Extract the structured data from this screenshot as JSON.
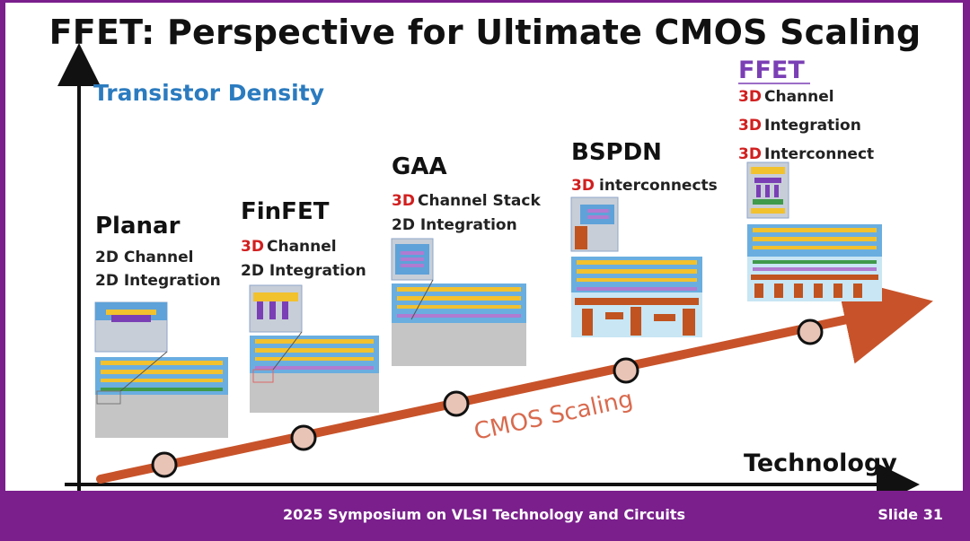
{
  "slide": {
    "title": "FFET: Perspective for Ultimate CMOS Scaling",
    "y_axis_label": "Transistor Density",
    "x_axis_label": "Technology",
    "trend_label": "CMOS Scaling",
    "footer_text": "2025 Symposium on VLSI Technology and Circuits",
    "slide_number": "Slide 31"
  },
  "stages": [
    {
      "name": "Planar",
      "line1_prefix": "",
      "line1": "2D Channel",
      "line2_prefix": "",
      "line2": "2D Integration"
    },
    {
      "name": "FinFET",
      "line1_prefix": "3D",
      "line1": " Channel",
      "line2_prefix": "",
      "line2": "2D Integration"
    },
    {
      "name": "GAA",
      "line1_prefix": "3D",
      "line1": " Channel Stack",
      "line2_prefix": "",
      "line2": "2D Integration"
    },
    {
      "name": "BSPDN",
      "line1_prefix": "3D",
      "line1": " interconnects",
      "line2_prefix": "",
      "line2": ""
    },
    {
      "name": "FFET",
      "line1_prefix": "3D",
      "line1": " Channel",
      "line2_prefix": "3D",
      "line2": " Integration",
      "line3_prefix": "3D",
      "line3": " Interconnect"
    }
  ],
  "colors": {
    "frame": "#7a1f8c",
    "trend_arrow": "#c8532a",
    "node_fill": "#e8c4b6",
    "axis_label_blue": "#2b7bbf",
    "accent_red": "#d11f1f",
    "ffet_purple": "#7b3fb5"
  }
}
